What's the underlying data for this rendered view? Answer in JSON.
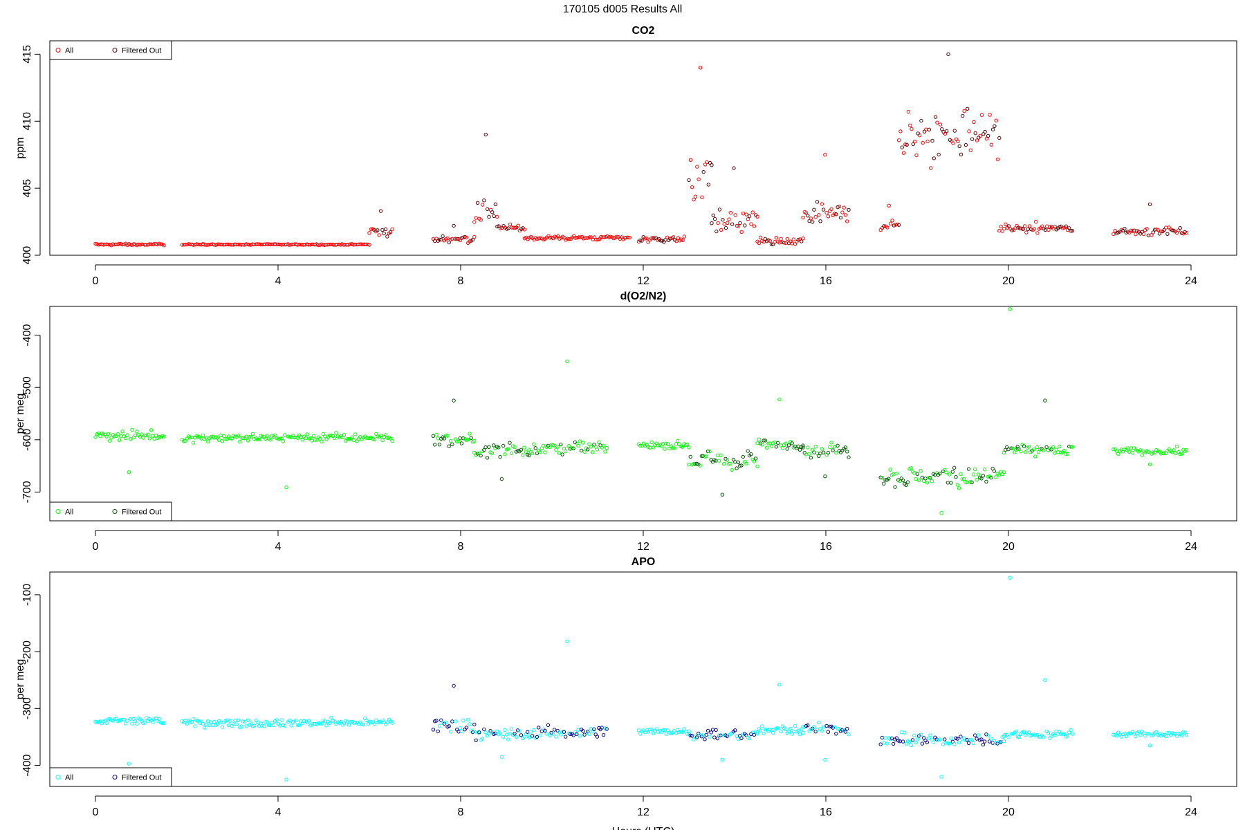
{
  "figure_title": "170105   d005   Results All",
  "chart_data": [
    {
      "type": "scatter",
      "id": "co2",
      "title": "CO2",
      "xlabel": "",
      "ylabel": "ppm",
      "xlim": [
        -1,
        25
      ],
      "ylim": [
        400,
        416
      ],
      "x_ticks": [
        0,
        4,
        8,
        12,
        16,
        20,
        24
      ],
      "y_ticks": [
        400,
        405,
        410,
        415
      ],
      "legend": {
        "position": "top-left",
        "entries": [
          "All",
          "Filtered Out"
        ]
      },
      "colors": {
        "all": "#ff0000",
        "filtered": "#550000"
      },
      "series": [
        {
          "name": "All",
          "segments": [
            {
              "x_start": 0.0,
              "x_end": 1.5,
              "base": 400.8,
              "noise": 0.1,
              "spike": 0.0
            },
            {
              "x_start": 1.9,
              "x_end": 6.0,
              "base": 400.8,
              "noise": 0.05,
              "spike": 0.0
            },
            {
              "x_start": 6.0,
              "x_end": 6.5,
              "base": 401.8,
              "noise": 0.6,
              "spike": 1.5
            },
            {
              "x_start": 7.4,
              "x_end": 8.3,
              "base": 401.2,
              "noise": 0.3,
              "spike": 1.0
            },
            {
              "x_start": 8.3,
              "x_end": 8.8,
              "base": 403.5,
              "noise": 2.0,
              "spike": 5.5
            },
            {
              "x_start": 8.8,
              "x_end": 9.4,
              "base": 402.0,
              "noise": 0.3,
              "spike": 0.3
            },
            {
              "x_start": 9.4,
              "x_end": 11.7,
              "base": 401.3,
              "noise": 0.2,
              "spike": 0.0
            },
            {
              "x_start": 11.9,
              "x_end": 12.9,
              "base": 401.2,
              "noise": 0.3,
              "spike": 0.0
            },
            {
              "x_start": 13.0,
              "x_end": 13.5,
              "base": 405.5,
              "noise": 2.5,
              "spike": 8.5
            },
            {
              "x_start": 13.5,
              "x_end": 14.5,
              "base": 402.5,
              "noise": 1.5,
              "spike": 4.0
            },
            {
              "x_start": 14.5,
              "x_end": 15.5,
              "base": 401.0,
              "noise": 0.4,
              "spike": 0.0
            },
            {
              "x_start": 15.5,
              "x_end": 16.5,
              "base": 403.0,
              "noise": 1.2,
              "spike": 4.5
            },
            {
              "x_start": 17.2,
              "x_end": 17.6,
              "base": 402.2,
              "noise": 0.6,
              "spike": 1.5
            },
            {
              "x_start": 17.6,
              "x_end": 19.8,
              "base": 409.0,
              "noise": 3.0,
              "spike": 6.0
            },
            {
              "x_start": 19.8,
              "x_end": 21.4,
              "base": 402.0,
              "noise": 0.4,
              "spike": 0.5
            },
            {
              "x_start": 22.3,
              "x_end": 23.9,
              "base": 401.8,
              "noise": 0.4,
              "spike": 2.0
            }
          ]
        }
      ]
    },
    {
      "type": "scatter",
      "id": "do2n2",
      "title": "d(O2/N2)",
      "xlabel": "",
      "ylabel": "per meg",
      "xlim": [
        -1,
        25
      ],
      "ylim": [
        -755,
        -345
      ],
      "x_ticks": [
        0,
        4,
        8,
        12,
        16,
        20,
        24
      ],
      "y_ticks": [
        -700,
        -600,
        -500,
        -400
      ],
      "legend": {
        "position": "bottom-left",
        "entries": [
          "All",
          "Filtered Out"
        ]
      },
      "colors": {
        "all": "#00ff00",
        "filtered": "#005500"
      },
      "series": [
        {
          "name": "All",
          "segments": [
            {
              "x_start": 0.0,
              "x_end": 1.5,
              "base": -592,
              "noise": 12,
              "spike": -70
            },
            {
              "x_start": 1.9,
              "x_end": 6.5,
              "base": -596,
              "noise": 12,
              "spike": -95
            },
            {
              "x_start": 7.4,
              "x_end": 8.3,
              "base": -600,
              "noise": 20,
              "spike": 75
            },
            {
              "x_start": 8.3,
              "x_end": 9.5,
              "base": -620,
              "noise": 22,
              "spike": -55
            },
            {
              "x_start": 9.5,
              "x_end": 11.2,
              "base": -615,
              "noise": 18,
              "spike": 165
            },
            {
              "x_start": 11.9,
              "x_end": 13.0,
              "base": -610,
              "noise": 10,
              "spike": 0
            },
            {
              "x_start": 13.0,
              "x_end": 14.5,
              "base": -640,
              "noise": 25,
              "spike": -65
            },
            {
              "x_start": 14.5,
              "x_end": 15.5,
              "base": -608,
              "noise": 15,
              "spike": 85
            },
            {
              "x_start": 15.5,
              "x_end": 16.5,
              "base": -620,
              "noise": 20,
              "spike": -50
            },
            {
              "x_start": 17.2,
              "x_end": 19.9,
              "base": -670,
              "noise": 30,
              "spike": -70
            },
            {
              "x_start": 19.9,
              "x_end": 20.2,
              "base": -620,
              "noise": 15,
              "spike": 270
            },
            {
              "x_start": 20.2,
              "x_end": 21.4,
              "base": -620,
              "noise": 15,
              "spike": 95
            },
            {
              "x_start": 22.3,
              "x_end": 23.9,
              "base": -622,
              "noise": 10,
              "spike": -25
            }
          ]
        }
      ]
    },
    {
      "type": "scatter",
      "id": "apo",
      "title": "APO",
      "xlabel": "Hours (UTC)",
      "ylabel": "per meg",
      "xlim": [
        -1,
        25
      ],
      "ylim": [
        -437,
        -60
      ],
      "x_ticks": [
        0,
        4,
        8,
        12,
        16,
        20,
        24
      ],
      "y_ticks": [
        -400,
        -300,
        -200,
        -100
      ],
      "legend": {
        "position": "bottom-left",
        "entries": [
          "All",
          "Filtered Out"
        ]
      },
      "colors": {
        "all": "#00ffff",
        "filtered": "#000080"
      },
      "series": [
        {
          "name": "All",
          "segments": [
            {
              "x_start": 0.0,
              "x_end": 1.5,
              "base": -322,
              "noise": 10,
              "spike": -75
            },
            {
              "x_start": 1.9,
              "x_end": 6.5,
              "base": -325,
              "noise": 10,
              "spike": -100
            },
            {
              "x_start": 7.4,
              "x_end": 8.3,
              "base": -330,
              "noise": 20,
              "spike": 70
            },
            {
              "x_start": 8.3,
              "x_end": 9.5,
              "base": -345,
              "noise": 15,
              "spike": -40
            },
            {
              "x_start": 9.5,
              "x_end": 11.2,
              "base": -342,
              "noise": 15,
              "spike": 160
            },
            {
              "x_start": 11.9,
              "x_end": 13.0,
              "base": -340,
              "noise": 8,
              "spike": 0
            },
            {
              "x_start": 13.0,
              "x_end": 14.5,
              "base": -345,
              "noise": 15,
              "spike": -45
            },
            {
              "x_start": 14.5,
              "x_end": 15.5,
              "base": -338,
              "noise": 12,
              "spike": 80
            },
            {
              "x_start": 15.5,
              "x_end": 16.5,
              "base": -335,
              "noise": 15,
              "spike": -55
            },
            {
              "x_start": 17.2,
              "x_end": 19.9,
              "base": -355,
              "noise": 15,
              "spike": -65
            },
            {
              "x_start": 19.9,
              "x_end": 20.2,
              "base": -345,
              "noise": 10,
              "spike": 275
            },
            {
              "x_start": 20.2,
              "x_end": 21.4,
              "base": -345,
              "noise": 10,
              "spike": 95
            },
            {
              "x_start": 22.3,
              "x_end": 23.9,
              "base": -345,
              "noise": 8,
              "spike": -20
            }
          ]
        }
      ]
    }
  ]
}
